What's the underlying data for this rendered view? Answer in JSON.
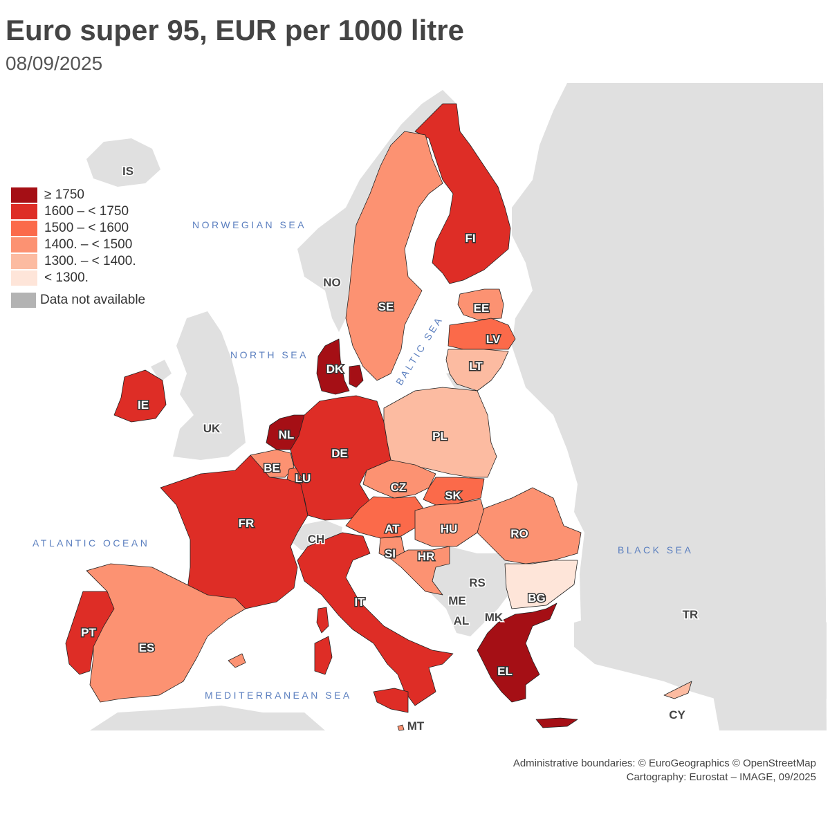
{
  "title": "Euro super 95, EUR per 1000 litre",
  "subtitle": "08/09/2025",
  "legend": {
    "classes": [
      {
        "label": "≥ 1750",
        "color": "#a50f15"
      },
      {
        "label": "1600 – < 1750",
        "color": "#de2d26"
      },
      {
        "label": "1500 – < 1600",
        "color": "#fb6a4a"
      },
      {
        "label": "1400. – < 1500",
        "color": "#fc9272"
      },
      {
        "label": "1300. – < 1400.",
        "color": "#fcbba1"
      },
      {
        "label": "< 1300.",
        "color": "#fee5d9"
      }
    ],
    "not_available": {
      "label": "Data not available",
      "color": "#b3b3b3"
    }
  },
  "countries": [
    {
      "code": "FI",
      "class": 1
    },
    {
      "code": "SE",
      "class": 3
    },
    {
      "code": "EE",
      "class": 3
    },
    {
      "code": "LV",
      "class": 2
    },
    {
      "code": "LT",
      "class": 4
    },
    {
      "code": "DK",
      "class": 0
    },
    {
      "code": "IE",
      "class": 1
    },
    {
      "code": "NL",
      "class": 0
    },
    {
      "code": "BE",
      "class": 3
    },
    {
      "code": "LU",
      "class": 2
    },
    {
      "code": "DE",
      "class": 1
    },
    {
      "code": "PL",
      "class": 4
    },
    {
      "code": "CZ",
      "class": 3
    },
    {
      "code": "SK",
      "class": 2
    },
    {
      "code": "AT",
      "class": 2
    },
    {
      "code": "HU",
      "class": 3
    },
    {
      "code": "SI",
      "class": 3
    },
    {
      "code": "HR",
      "class": 3
    },
    {
      "code": "RO",
      "class": 3
    },
    {
      "code": "BG",
      "class": 5
    },
    {
      "code": "FR",
      "class": 1
    },
    {
      "code": "ES",
      "class": 3
    },
    {
      "code": "PT",
      "class": 1
    },
    {
      "code": "IT",
      "class": 1
    },
    {
      "code": "MT",
      "class": 3
    },
    {
      "code": "EL",
      "class": 0
    },
    {
      "code": "CY",
      "class": 4
    }
  ],
  "other_countries": [
    "IS",
    "NO",
    "UK",
    "CH",
    "RS",
    "ME",
    "AL",
    "MK",
    "TR"
  ],
  "seas": [
    "NORWEGIAN SEA",
    "NORTH SEA",
    "BALTIC SEA",
    "ATLANTIC OCEAN",
    "BLACK SEA",
    "MEDITERRANEAN SEA"
  ],
  "colors": {
    "land_other": "#e0e0e0",
    "non_eu": "#dcdcdc",
    "water": "#ffffff",
    "border": "#222222"
  },
  "footer": {
    "line1": "Administrative boundaries: © EuroGeographics © OpenStreetMap",
    "line2": "Cartography: Eurostat – IMAGE, 09/2025"
  }
}
